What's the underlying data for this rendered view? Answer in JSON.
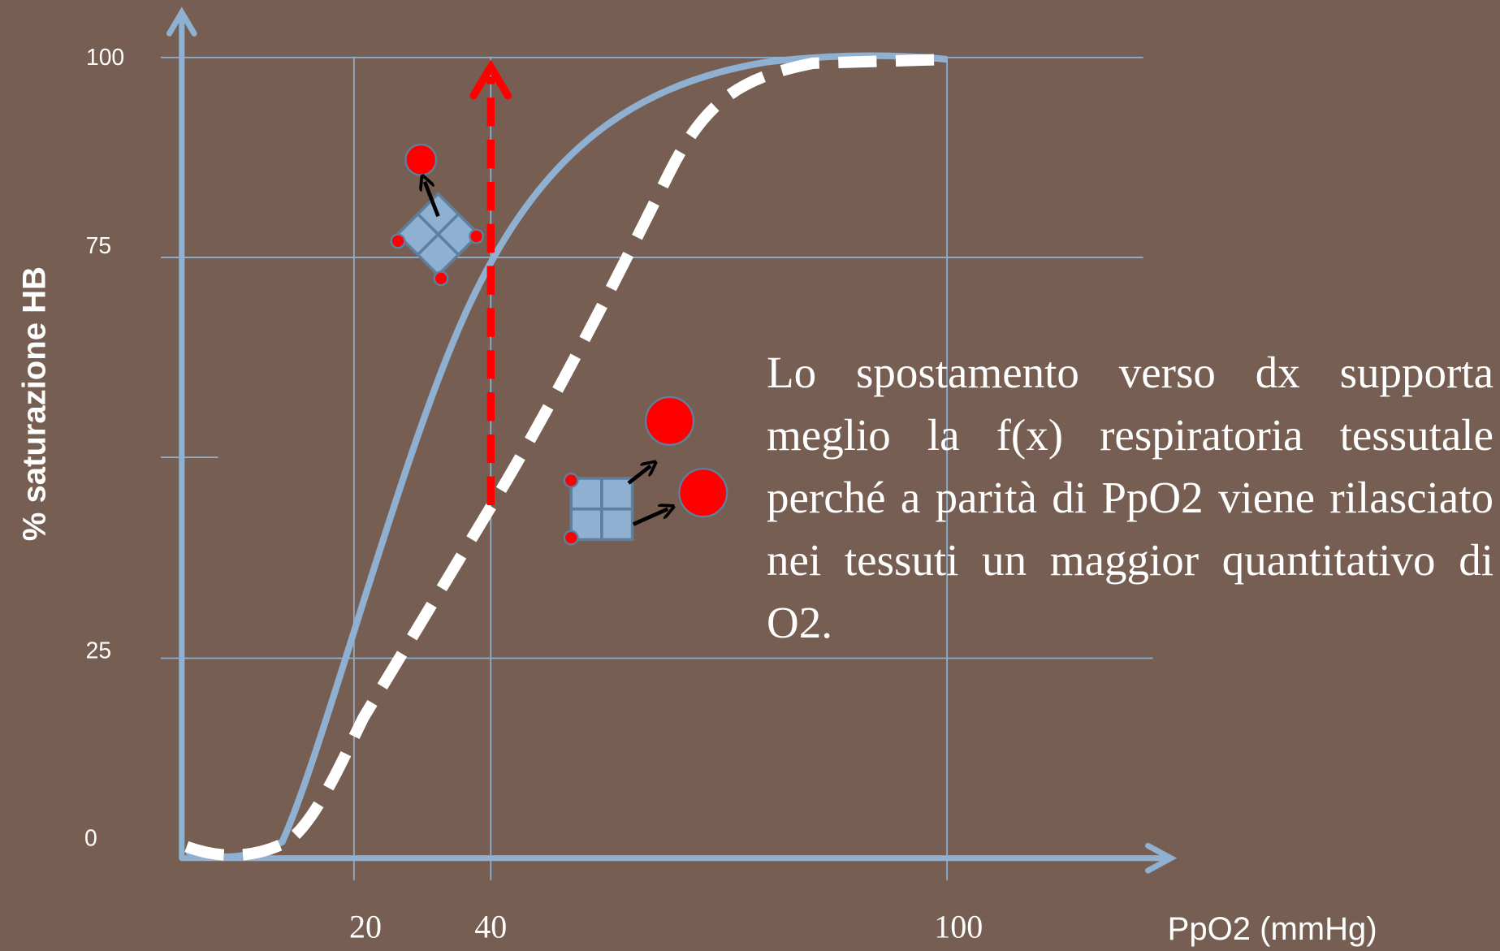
{
  "y_axis": {
    "label": "% saturazione HB",
    "tick_labels": [
      "100",
      "75",
      "25",
      "0"
    ]
  },
  "x_axis": {
    "label": "PpO2 (mmHg)",
    "tick_labels": [
      "20",
      "40",
      "100"
    ]
  },
  "note": "Lo spostamento verso dx supporta meglio la f(x) respiratoria tessutale perché a parità di PpO2 viene rilasciato nei tessuti un maggior quantitativo di O2."
}
